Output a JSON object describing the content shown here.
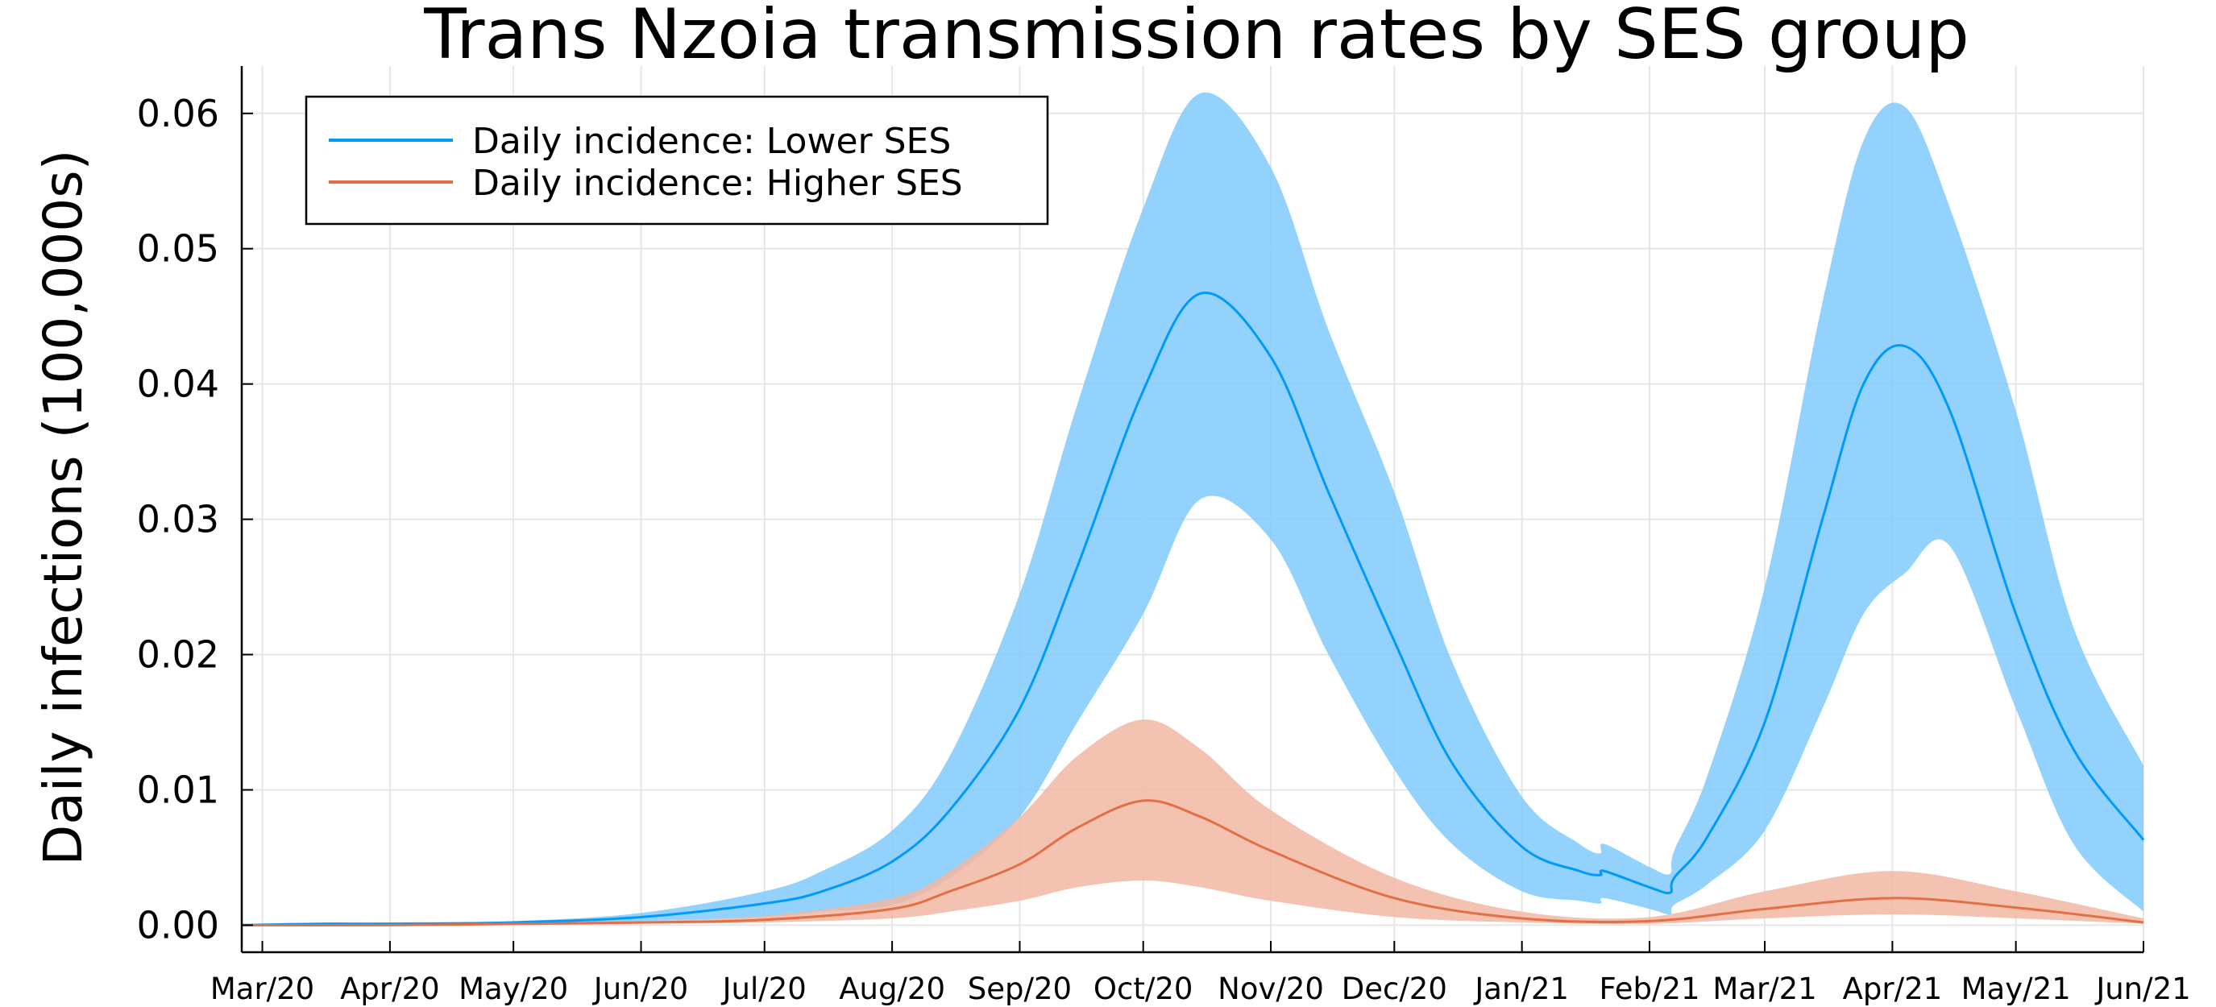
{
  "chart_data": {
    "type": "line",
    "title": "Trans Nzoia transmission rates by SES group",
    "xlabel": "",
    "ylabel": "Daily infections (100,000s)",
    "xlim": [
      "2020-02-25",
      "2021-06-01"
    ],
    "ylim": [
      -0.002,
      0.0635
    ],
    "x_ticks": [
      {
        "date": "2020-03-01",
        "label": "Mar/20"
      },
      {
        "date": "2020-04-01",
        "label": "Apr/20"
      },
      {
        "date": "2020-05-01",
        "label": "May/20"
      },
      {
        "date": "2020-06-01",
        "label": "Jun/20"
      },
      {
        "date": "2020-07-01",
        "label": "Jul/20"
      },
      {
        "date": "2020-08-01",
        "label": "Aug/20"
      },
      {
        "date": "2020-09-01",
        "label": "Sep/20"
      },
      {
        "date": "2020-10-01",
        "label": "Oct/20"
      },
      {
        "date": "2020-11-01",
        "label": "Nov/20"
      },
      {
        "date": "2020-12-01",
        "label": "Dec/20"
      },
      {
        "date": "2021-01-01",
        "label": "Jan/21"
      },
      {
        "date": "2021-02-01",
        "label": "Feb/21"
      },
      {
        "date": "2021-03-01",
        "label": "Mar/21"
      },
      {
        "date": "2021-04-01",
        "label": "Apr/21"
      },
      {
        "date": "2021-05-01",
        "label": "May/21"
      },
      {
        "date": "2021-06-01",
        "label": "Jun/21"
      }
    ],
    "y_ticks": [
      {
        "value": 0.0,
        "label": "0.00"
      },
      {
        "value": 0.01,
        "label": "0.01"
      },
      {
        "value": 0.02,
        "label": "0.02"
      },
      {
        "value": 0.03,
        "label": "0.03"
      },
      {
        "value": 0.04,
        "label": "0.04"
      },
      {
        "value": 0.05,
        "label": "0.05"
      },
      {
        "value": 0.06,
        "label": "0.06"
      }
    ],
    "grid": true,
    "legend_position": "top-left",
    "series": [
      {
        "name": "Daily incidence: Lower SES",
        "color": "#009AFA",
        "band_color": "#80CAFC",
        "points": [
          {
            "x": "2020-02-25",
            "y": 0.0,
            "lo": 0.0,
            "hi": 0.0
          },
          {
            "x": "2020-03-15",
            "y": 0.0001,
            "lo": 0.0,
            "hi": 0.0001
          },
          {
            "x": "2020-04-01",
            "y": 0.0001,
            "lo": 0.0001,
            "hi": 0.0002
          },
          {
            "x": "2020-05-01",
            "y": 0.0002,
            "lo": 0.0001,
            "hi": 0.0003
          },
          {
            "x": "2020-06-01",
            "y": 0.0006,
            "lo": 0.0003,
            "hi": 0.0009
          },
          {
            "x": "2020-07-01",
            "y": 0.0016,
            "lo": 0.0006,
            "hi": 0.0025
          },
          {
            "x": "2020-07-15",
            "y": 0.0025,
            "lo": 0.001,
            "hi": 0.004
          },
          {
            "x": "2020-08-01",
            "y": 0.0047,
            "lo": 0.0015,
            "hi": 0.007
          },
          {
            "x": "2020-08-15",
            "y": 0.0085,
            "lo": 0.0035,
            "hi": 0.0125
          },
          {
            "x": "2020-09-01",
            "y": 0.016,
            "lo": 0.008,
            "hi": 0.0245
          },
          {
            "x": "2020-09-15",
            "y": 0.0265,
            "lo": 0.015,
            "hi": 0.0385
          },
          {
            "x": "2020-10-01",
            "y": 0.0395,
            "lo": 0.023,
            "hi": 0.053
          },
          {
            "x": "2020-10-15",
            "y": 0.0467,
            "lo": 0.0315,
            "hi": 0.0615
          },
          {
            "x": "2020-11-01",
            "y": 0.042,
            "lo": 0.0285,
            "hi": 0.056
          },
          {
            "x": "2020-11-15",
            "y": 0.032,
            "lo": 0.02,
            "hi": 0.044
          },
          {
            "x": "2020-12-01",
            "y": 0.021,
            "lo": 0.0115,
            "hi": 0.032
          },
          {
            "x": "2020-12-15",
            "y": 0.012,
            "lo": 0.006,
            "hi": 0.0195
          },
          {
            "x": "2021-01-01",
            "y": 0.0058,
            "lo": 0.0025,
            "hi": 0.0095
          },
          {
            "x": "2021-01-15",
            "y": 0.004,
            "lo": 0.0018,
            "hi": 0.006
          },
          {
            "x": "2021-01-20",
            "y": 0.0037,
            "lo": 0.0016,
            "hi": 0.0053
          },
          {
            "x": "2021-01-21",
            "y": 0.004,
            "lo": 0.002,
            "hi": 0.006
          },
          {
            "x": "2021-02-01",
            "y": 0.0028,
            "lo": 0.0012,
            "hi": 0.0043
          },
          {
            "x": "2021-02-06",
            "y": 0.0024,
            "lo": 0.0008,
            "hi": 0.0038
          },
          {
            "x": "2021-02-07",
            "y": 0.0035,
            "lo": 0.0015,
            "hi": 0.0055
          },
          {
            "x": "2021-02-15",
            "y": 0.0065,
            "lo": 0.003,
            "hi": 0.011
          },
          {
            "x": "2021-03-01",
            "y": 0.015,
            "lo": 0.007,
            "hi": 0.025
          },
          {
            "x": "2021-03-15",
            "y": 0.03,
            "lo": 0.016,
            "hi": 0.046
          },
          {
            "x": "2021-03-25",
            "y": 0.04,
            "lo": 0.023,
            "hi": 0.058
          },
          {
            "x": "2021-04-04",
            "y": 0.0428,
            "lo": 0.026,
            "hi": 0.0605
          },
          {
            "x": "2021-04-15",
            "y": 0.038,
            "lo": 0.028,
            "hi": 0.053
          },
          {
            "x": "2021-05-01",
            "y": 0.023,
            "lo": 0.016,
            "hi": 0.038
          },
          {
            "x": "2021-05-15",
            "y": 0.013,
            "lo": 0.006,
            "hi": 0.022
          },
          {
            "x": "2021-06-01",
            "y": 0.0063,
            "lo": 0.001,
            "hi": 0.0118
          }
        ]
      },
      {
        "name": "Daily incidence: Higher SES",
        "color": "#E26F46",
        "band_color": "#F1B7A2",
        "points": [
          {
            "x": "2020-02-25",
            "y": 0.0,
            "lo": 0.0,
            "hi": 0.0
          },
          {
            "x": "2020-04-01",
            "y": 0.0,
            "lo": 0.0,
            "hi": 0.0001
          },
          {
            "x": "2020-05-01",
            "y": 0.0001,
            "lo": 0.0,
            "hi": 0.0001
          },
          {
            "x": "2020-06-01",
            "y": 0.0002,
            "lo": 0.0001,
            "hi": 0.0003
          },
          {
            "x": "2020-07-01",
            "y": 0.0004,
            "lo": 0.0002,
            "hi": 0.0007
          },
          {
            "x": "2020-08-01",
            "y": 0.0012,
            "lo": 0.0005,
            "hi": 0.002
          },
          {
            "x": "2020-08-15",
            "y": 0.0025,
            "lo": 0.001,
            "hi": 0.004
          },
          {
            "x": "2020-09-01",
            "y": 0.0045,
            "lo": 0.0018,
            "hi": 0.008
          },
          {
            "x": "2020-09-15",
            "y": 0.0072,
            "lo": 0.0028,
            "hi": 0.0125
          },
          {
            "x": "2020-10-01",
            "y": 0.0092,
            "lo": 0.0033,
            "hi": 0.0152
          },
          {
            "x": "2020-10-15",
            "y": 0.008,
            "lo": 0.0028,
            "hi": 0.013
          },
          {
            "x": "2020-11-01",
            "y": 0.0055,
            "lo": 0.0018,
            "hi": 0.0085
          },
          {
            "x": "2020-12-01",
            "y": 0.002,
            "lo": 0.0006,
            "hi": 0.0035
          },
          {
            "x": "2021-01-01",
            "y": 0.0005,
            "lo": 0.0002,
            "hi": 0.001
          },
          {
            "x": "2021-02-01",
            "y": 0.0003,
            "lo": 0.0001,
            "hi": 0.0006
          },
          {
            "x": "2021-03-01",
            "y": 0.0012,
            "lo": 0.0005,
            "hi": 0.0025
          },
          {
            "x": "2021-04-01",
            "y": 0.002,
            "lo": 0.0008,
            "hi": 0.004
          },
          {
            "x": "2021-05-01",
            "y": 0.0013,
            "lo": 0.0005,
            "hi": 0.0025
          },
          {
            "x": "2021-06-01",
            "y": 0.0002,
            "lo": 0.0001,
            "hi": 0.0005
          }
        ]
      }
    ]
  }
}
